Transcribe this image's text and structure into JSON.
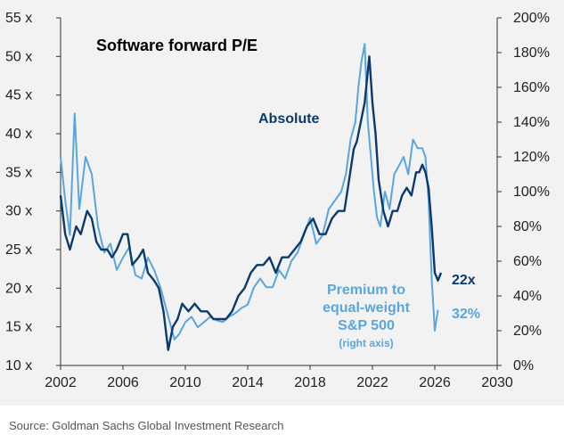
{
  "source": "Source: Goldman Sachs Global Investment Research",
  "chart_data": {
    "type": "line",
    "title": "Software forward P/E",
    "xlim": [
      2002,
      2030
    ],
    "x_ticks": [
      2002,
      2006,
      2010,
      2014,
      2018,
      2022,
      2026,
      2030
    ],
    "ylim_left": [
      10,
      55
    ],
    "y_ticks_left": [
      10,
      15,
      20,
      25,
      30,
      35,
      40,
      45,
      50,
      55
    ],
    "y_tick_labels_left": [
      "10 x",
      "15 x",
      "20 x",
      "25 x",
      "30 x",
      "35 x",
      "40 x",
      "45 x",
      "50 x",
      "55 x"
    ],
    "ylim_right": [
      0,
      200
    ],
    "y_ticks_right": [
      0,
      20,
      40,
      60,
      80,
      100,
      120,
      140,
      160,
      180,
      200
    ],
    "y_tick_labels_right": [
      "0%",
      "20%",
      "40%",
      "60%",
      "80%",
      "100%",
      "120%",
      "140%",
      "160%",
      "180%",
      "200%"
    ],
    "grid": false,
    "colors": {
      "absolute": "#0b3a6b",
      "premium": "#5aa6dc",
      "axis": "#333333",
      "background": "#f2f2f2"
    },
    "series": [
      {
        "name": "Absolute",
        "axis": "left",
        "end_label": "22x",
        "x": [
          2002.0,
          2002.3,
          2002.6,
          2003.0,
          2003.3,
          2003.7,
          2004.0,
          2004.3,
          2004.6,
          2005.0,
          2005.3,
          2005.6,
          2006.0,
          2006.3,
          2006.6,
          2007.0,
          2007.3,
          2007.6,
          2008.0,
          2008.3,
          2008.6,
          2008.9,
          2009.2,
          2009.5,
          2009.8,
          2010.2,
          2010.6,
          2011.0,
          2011.4,
          2011.8,
          2012.2,
          2012.6,
          2013.0,
          2013.4,
          2013.8,
          2014.2,
          2014.6,
          2015.0,
          2015.4,
          2015.8,
          2016.2,
          2016.6,
          2017.0,
          2017.4,
          2017.8,
          2018.2,
          2018.6,
          2019.0,
          2019.4,
          2019.8,
          2020.2,
          2020.5,
          2020.8,
          2021.0,
          2021.2,
          2021.5,
          2021.8,
          2022.0,
          2022.2,
          2022.4,
          2022.7,
          2023.0,
          2023.3,
          2023.6,
          2023.9,
          2024.2,
          2024.5,
          2024.8,
          2025.0,
          2025.2,
          2025.4,
          2025.6,
          2025.8,
          2026.0,
          2026.2,
          2026.4
        ],
        "values": [
          32,
          27,
          25,
          28,
          27,
          30,
          29,
          26,
          25,
          25,
          24,
          25,
          27,
          27,
          23,
          24,
          25,
          22,
          21,
          20,
          17,
          12,
          15,
          16,
          18,
          17,
          18,
          17,
          17,
          16,
          16,
          16,
          17,
          19,
          20,
          22,
          23,
          23,
          24,
          22,
          24,
          24,
          25,
          26,
          28,
          29,
          27,
          27,
          29,
          30,
          30,
          34,
          38,
          39,
          41,
          44,
          50,
          44,
          40,
          34,
          30,
          28,
          30,
          30,
          32,
          33,
          32,
          35,
          35,
          36,
          35,
          33,
          28,
          22,
          21,
          22
        ]
      },
      {
        "name": "Premium to equal-weight S&P 500 (right axis)",
        "axis": "right",
        "end_label": "32%",
        "x": [
          2002.0,
          2002.3,
          2002.6,
          2002.9,
          2003.2,
          2003.6,
          2004.0,
          2004.4,
          2004.8,
          2005.2,
          2005.6,
          2006.0,
          2006.4,
          2006.8,
          2007.2,
          2007.6,
          2008.0,
          2008.4,
          2008.7,
          2009.0,
          2009.3,
          2009.6,
          2010.0,
          2010.4,
          2010.8,
          2011.2,
          2011.6,
          2012.0,
          2012.4,
          2012.8,
          2013.2,
          2013.6,
          2014.0,
          2014.4,
          2014.8,
          2015.2,
          2015.6,
          2016.0,
          2016.4,
          2016.8,
          2017.2,
          2017.6,
          2018.0,
          2018.4,
          2018.8,
          2019.2,
          2019.6,
          2020.0,
          2020.3,
          2020.6,
          2020.9,
          2021.1,
          2021.3,
          2021.5,
          2021.7,
          2021.9,
          2022.1,
          2022.3,
          2022.5,
          2022.8,
          2023.1,
          2023.4,
          2023.7,
          2024.0,
          2024.3,
          2024.6,
          2024.9,
          2025.2,
          2025.4,
          2025.6,
          2025.8,
          2026.0,
          2026.2
        ],
        "values": [
          120,
          95,
          75,
          145,
          90,
          120,
          110,
          80,
          65,
          70,
          55,
          62,
          68,
          52,
          50,
          62,
          55,
          45,
          35,
          25,
          15,
          18,
          25,
          28,
          22,
          25,
          28,
          26,
          25,
          28,
          30,
          33,
          35,
          45,
          50,
          45,
          45,
          55,
          50,
          60,
          65,
          75,
          85,
          70,
          75,
          90,
          95,
          100,
          110,
          130,
          140,
          160,
          175,
          185,
          140,
          120,
          100,
          85,
          80,
          100,
          90,
          110,
          115,
          120,
          110,
          130,
          125,
          125,
          120,
          95,
          50,
          20,
          32
        ]
      }
    ],
    "annotations": [
      {
        "text": "Absolute",
        "series": 0
      },
      {
        "text": "22x",
        "series": 0
      },
      {
        "text": "Premium to",
        "series": 1
      },
      {
        "text": "equal-weight",
        "series": 1
      },
      {
        "text": "S&P 500",
        "series": 1
      },
      {
        "text": "(right axis)",
        "series": 1
      },
      {
        "text": "32%",
        "series": 1
      }
    ]
  }
}
